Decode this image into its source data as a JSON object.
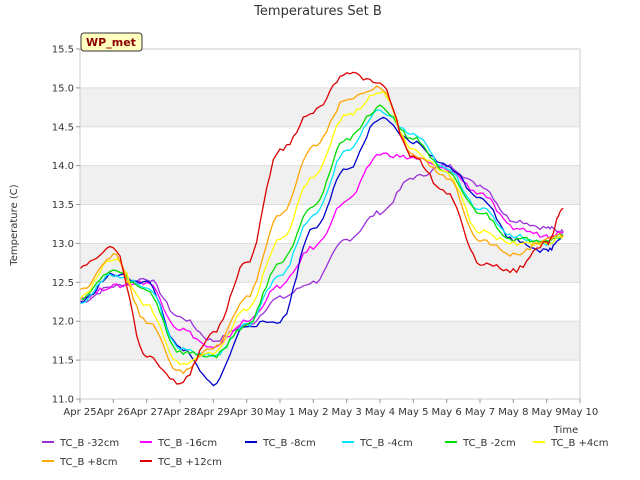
{
  "chart_data": {
    "type": "line",
    "title": "Temperatures Set B",
    "xlabel": "Time",
    "ylabel": "Temperature (C)",
    "ylim": [
      11.0,
      15.5
    ],
    "xlim": [
      "2024-04-25",
      "2024-05-10"
    ],
    "x_ticks": [
      "Apr 25",
      "Apr 26",
      "Apr 27",
      "Apr 28",
      "Apr 29",
      "Apr 30",
      "May 1",
      "May 2",
      "May 3",
      "May 4",
      "May 5",
      "May 6",
      "May 7",
      "May 8",
      "May 9",
      "May 10"
    ],
    "y_ticks": [
      "11.0",
      "11.5",
      "12.0",
      "12.5",
      "13.0",
      "13.5",
      "14.0",
      "14.5",
      "15.0",
      "15.5"
    ],
    "site_label": "WP_met",
    "grid": true,
    "legend_position": "bottom",
    "x": [
      "2024-04-25",
      "2024-04-26",
      "2024-04-27",
      "2024-04-28",
      "2024-04-29",
      "2024-04-30",
      "2024-05-01",
      "2024-05-02",
      "2024-05-03",
      "2024-05-04",
      "2024-05-05",
      "2024-05-06",
      "2024-05-07",
      "2024-05-08",
      "2024-05-09",
      "2024-05-09T12:00"
    ],
    "series": [
      {
        "name": "TC_B -32cm",
        "color": "#9b30d9",
        "values": [
          12.25,
          12.45,
          12.55,
          12.05,
          11.75,
          11.95,
          12.3,
          12.5,
          13.05,
          13.4,
          13.85,
          14.0,
          13.75,
          13.3,
          13.2,
          13.15
        ]
      },
      {
        "name": "TC_B -16cm",
        "color": "#ff00ff",
        "values": [
          12.3,
          12.45,
          12.5,
          11.9,
          11.65,
          12.0,
          12.45,
          12.95,
          13.55,
          14.15,
          14.1,
          13.95,
          13.65,
          13.2,
          13.1,
          13.15
        ]
      },
      {
        "name": "TC_B -8cm",
        "color": "#0000cc",
        "values": [
          12.25,
          12.6,
          12.5,
          11.65,
          11.2,
          11.95,
          12.0,
          13.2,
          13.95,
          14.6,
          14.3,
          14.0,
          13.6,
          13.05,
          12.9,
          13.1
        ]
      },
      {
        "name": "TC_B -4cm",
        "color": "#00e5ff",
        "values": [
          12.25,
          12.6,
          12.45,
          11.65,
          11.55,
          11.95,
          12.6,
          13.35,
          14.2,
          14.7,
          14.4,
          13.95,
          13.45,
          13.1,
          13.0,
          13.1
        ]
      },
      {
        "name": "TC_B -2cm",
        "color": "#00dd00",
        "values": [
          12.3,
          12.65,
          12.4,
          11.6,
          11.55,
          11.95,
          12.75,
          13.5,
          14.35,
          14.75,
          14.35,
          13.9,
          13.4,
          13.05,
          13.05,
          13.1
        ]
      },
      {
        "name": "TC_B +4cm",
        "color": "#ffff00",
        "values": [
          12.3,
          12.8,
          12.2,
          11.45,
          11.6,
          12.15,
          13.05,
          13.85,
          14.65,
          14.95,
          14.2,
          13.9,
          13.15,
          13.0,
          13.0,
          13.1
        ]
      },
      {
        "name": "TC_B +8cm",
        "color": "#ffa500",
        "values": [
          12.4,
          12.85,
          12.0,
          11.35,
          11.65,
          12.3,
          13.35,
          14.25,
          14.85,
          15.0,
          14.15,
          13.85,
          13.05,
          12.85,
          13.05,
          13.1
        ]
      },
      {
        "name": "TC_B +12cm",
        "color": "#dd0000",
        "values": [
          12.7,
          12.95,
          11.55,
          11.2,
          11.85,
          12.75,
          14.2,
          14.7,
          15.2,
          15.05,
          14.1,
          13.65,
          12.75,
          12.65,
          13.0,
          13.45
        ]
      }
    ]
  }
}
